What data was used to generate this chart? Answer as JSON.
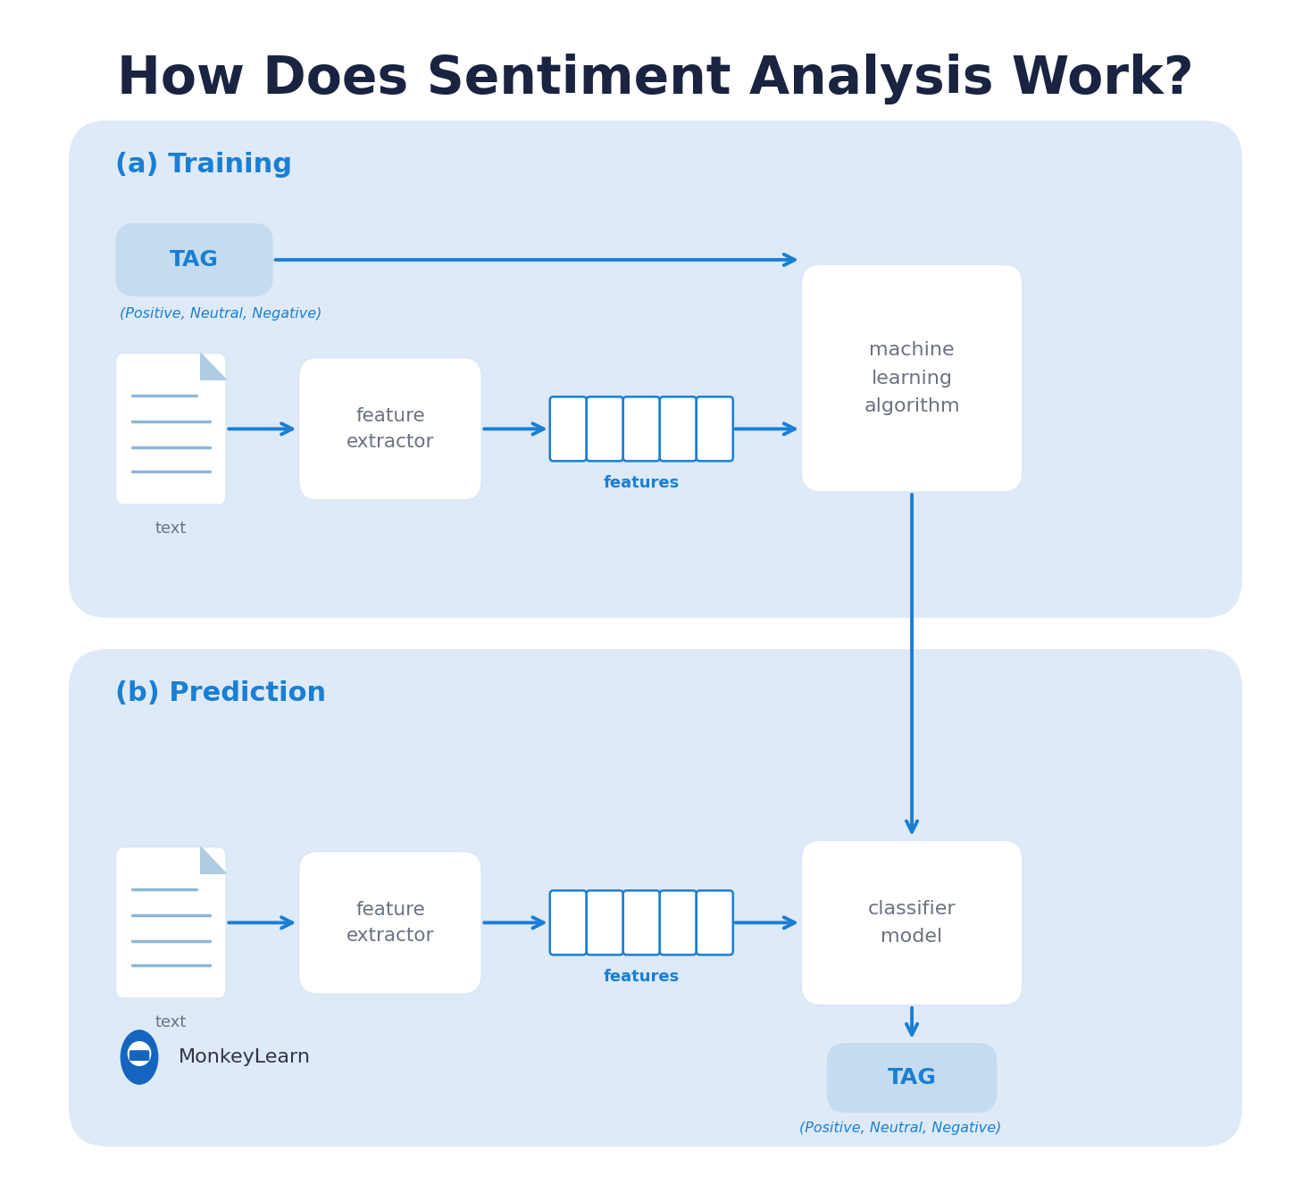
{
  "title": "How Does Sentiment Analysis Work?",
  "title_fontsize": 42,
  "title_color": "#1a2340",
  "bg_color": "#ffffff",
  "panel_bg": "#deeaf8",
  "arrow_color": "#1a7fd4",
  "blue_text": "#1a7fd4",
  "gray_text": "#6b7280",
  "label_a": "(a) Training",
  "label_b": "(b) Prediction",
  "tag_text": "TAG",
  "tag_sub_train": "(Positive, Neutral, Negative)",
  "tag_sub_pred": "(Positive, Neutral, Negative)",
  "feature_extractor_text": "feature\nextractor",
  "features_text": "features",
  "ml_algo_text": "machine\nlearning\nalgorithm",
  "classifier_text": "classifier\nmodel",
  "text_label": "text",
  "monkeylearn_text": "MonkeyLearn",
  "box_tag_fill": "#c5dcf0",
  "doc_fold_color": "#b0cce0",
  "doc_line_color": "#8fb8d8"
}
